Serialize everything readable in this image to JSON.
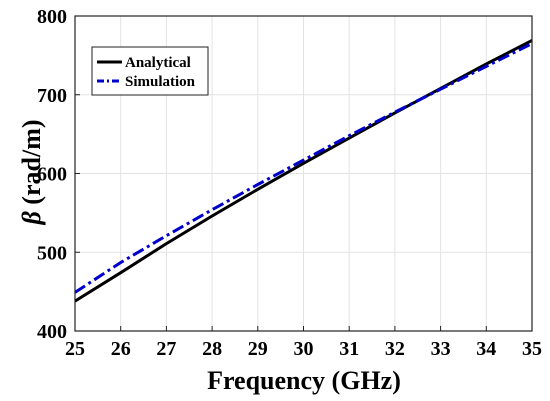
{
  "chart_data": {
    "type": "line",
    "xlabel": "Frequency (GHz)",
    "ylabel_symbol": "β",
    "ylabel_unit": " (rad/m)",
    "xlim": [
      25,
      35
    ],
    "ylim": [
      400,
      800
    ],
    "xticks": [
      25,
      26,
      27,
      28,
      29,
      30,
      31,
      32,
      33,
      34,
      35
    ],
    "yticks": [
      400,
      500,
      600,
      700,
      800
    ],
    "grid": true,
    "legend_position": "top-left",
    "x": [
      25,
      26,
      27,
      28,
      29,
      30,
      31,
      32,
      33,
      34,
      35
    ],
    "series": [
      {
        "name": "Analytical",
        "color": "#000000",
        "style": "solid",
        "values": [
          438,
          474,
          511,
          546,
          580,
          613,
          645,
          677,
          708,
          739,
          769
        ]
      },
      {
        "name": "Simulation",
        "color": "#0000cc",
        "style": "dash-dot",
        "values": [
          449,
          487,
          521,
          554,
          586,
          617,
          648,
          678,
          707,
          736,
          765
        ]
      }
    ]
  }
}
